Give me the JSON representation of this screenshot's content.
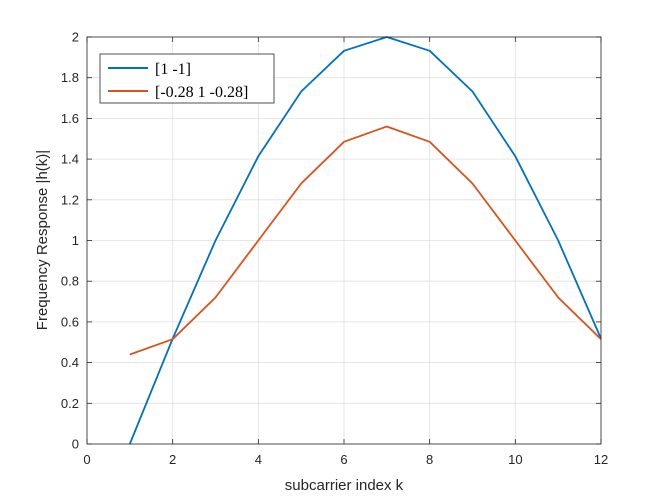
{
  "chart_data": {
    "type": "line",
    "xlabel": "subcarrier index k",
    "ylabel": "Frequency Response |h(k)|",
    "xlim": [
      0,
      12
    ],
    "ylim": [
      0,
      2
    ],
    "xticks": [
      "0",
      "2",
      "4",
      "6",
      "8",
      "10",
      "12"
    ],
    "yticks": [
      "0",
      "0.2",
      "0.4",
      "0.6",
      "0.8",
      "1",
      "1.2",
      "1.4",
      "1.6",
      "1.8",
      "2"
    ],
    "grid": true,
    "legend_position": "top-left",
    "x": [
      1,
      2,
      3,
      4,
      5,
      6,
      7,
      8,
      9,
      10,
      11,
      12
    ],
    "series": [
      {
        "name": "[1 -1]",
        "color": "#0072BD",
        "values": [
          0,
          0.518,
          1.0,
          1.414,
          1.732,
          1.932,
          2.0,
          1.932,
          1.732,
          1.414,
          1.0,
          0.518
        ]
      },
      {
        "name": "[-0.28 1 -0.28]",
        "color": "#D95319",
        "values": [
          0.44,
          0.515,
          0.72,
          1.0,
          1.28,
          1.485,
          1.56,
          1.485,
          1.28,
          1.0,
          0.72,
          0.515
        ]
      }
    ]
  }
}
